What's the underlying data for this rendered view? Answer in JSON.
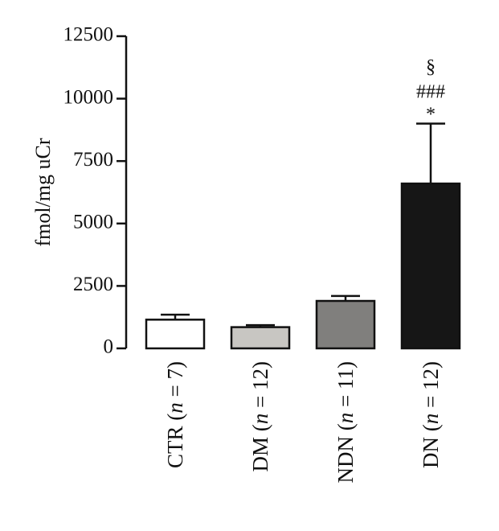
{
  "chart_data": {
    "type": "bar",
    "title": "",
    "xlabel": "",
    "ylabel": "fmol/mg uCr",
    "ylim": [
      0,
      12500
    ],
    "yticks": [
      0,
      2500,
      5000,
      7500,
      10000,
      12500
    ],
    "ytick_labels": [
      "0",
      "2500",
      "5000",
      "7500",
      "10000",
      "12500"
    ],
    "categories": [
      {
        "name": "CTR",
        "n_text": "n",
        "eq_text": " = 7)"
      },
      {
        "name": "DM",
        "n_text": "n",
        "eq_text": " = 12)"
      },
      {
        "name": "NDN",
        "n_text": "n",
        "eq_text": " = 11)"
      },
      {
        "name": "DN",
        "n_text": "n",
        "eq_text": " = 12)"
      }
    ],
    "values": [
      1150,
      850,
      1900,
      6600
    ],
    "errors": [
      200,
      80,
      200,
      2400
    ],
    "bar_colors": [
      "#ffffff",
      "#c8c6c2",
      "#807f7d",
      "#161616"
    ],
    "annotations": {
      "category_index": 3,
      "lines": [
        "§",
        "###",
        "*"
      ]
    },
    "grid": false
  }
}
